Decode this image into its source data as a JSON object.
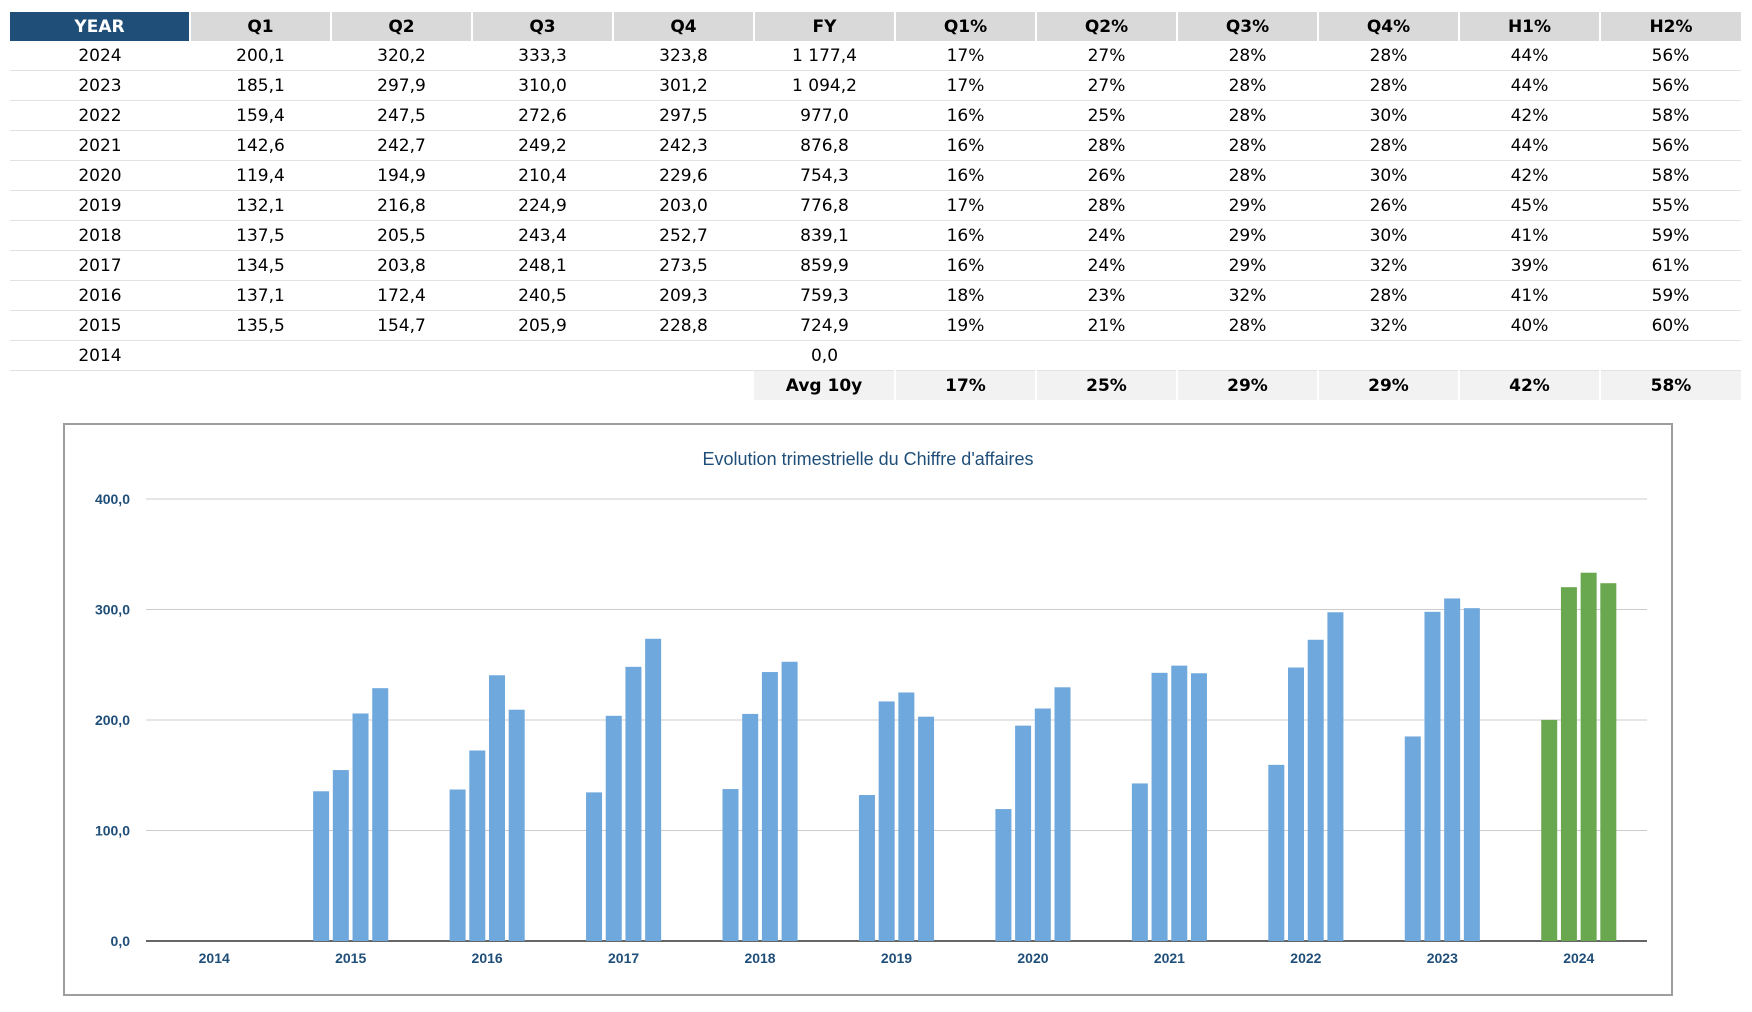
{
  "table": {
    "headers": [
      "YEAR",
      "Q1",
      "Q2",
      "Q3",
      "Q4",
      "FY",
      "Q1%",
      "Q2%",
      "Q3%",
      "Q4%",
      "H1%",
      "H2%"
    ],
    "rows": [
      [
        "2024",
        "200,1",
        "320,2",
        "333,3",
        "323,8",
        "1 177,4",
        "17%",
        "27%",
        "28%",
        "28%",
        "44%",
        "56%"
      ],
      [
        "2023",
        "185,1",
        "297,9",
        "310,0",
        "301,2",
        "1 094,2",
        "17%",
        "27%",
        "28%",
        "28%",
        "44%",
        "56%"
      ],
      [
        "2022",
        "159,4",
        "247,5",
        "272,6",
        "297,5",
        "977,0",
        "16%",
        "25%",
        "28%",
        "30%",
        "42%",
        "58%"
      ],
      [
        "2021",
        "142,6",
        "242,7",
        "249,2",
        "242,3",
        "876,8",
        "16%",
        "28%",
        "28%",
        "28%",
        "44%",
        "56%"
      ],
      [
        "2020",
        "119,4",
        "194,9",
        "210,4",
        "229,6",
        "754,3",
        "16%",
        "26%",
        "28%",
        "30%",
        "42%",
        "58%"
      ],
      [
        "2019",
        "132,1",
        "216,8",
        "224,9",
        "203,0",
        "776,8",
        "17%",
        "28%",
        "29%",
        "26%",
        "45%",
        "55%"
      ],
      [
        "2018",
        "137,5",
        "205,5",
        "243,4",
        "252,7",
        "839,1",
        "16%",
        "24%",
        "29%",
        "30%",
        "41%",
        "59%"
      ],
      [
        "2017",
        "134,5",
        "203,8",
        "248,1",
        "273,5",
        "859,9",
        "16%",
        "24%",
        "29%",
        "32%",
        "39%",
        "61%"
      ],
      [
        "2016",
        "137,1",
        "172,4",
        "240,5",
        "209,3",
        "759,3",
        "18%",
        "23%",
        "32%",
        "28%",
        "41%",
        "59%"
      ],
      [
        "2015",
        "135,5",
        "154,7",
        "205,9",
        "228,8",
        "724,9",
        "19%",
        "21%",
        "28%",
        "32%",
        "40%",
        "60%"
      ],
      [
        "2014",
        "",
        "",
        "",
        "",
        "0,0",
        "",
        "",
        "",
        "",
        "",
        ""
      ]
    ],
    "avg": {
      "label": "Avg 10y",
      "values": [
        "17%",
        "25%",
        "29%",
        "29%",
        "42%",
        "58%"
      ]
    }
  },
  "colors": {
    "header_year_bg": "#1f4e79",
    "header_bg": "#d9d9d9",
    "bar_default": "#6fa8dc",
    "bar_highlight": "#6aa84f",
    "axis_text": "#1f4e79"
  },
  "chart_data": {
    "type": "bar",
    "title": "Evolution trimestrielle du Chiffre d'affaires",
    "xlabel": "",
    "ylabel": "",
    "categories": [
      "2014",
      "2015",
      "2016",
      "2017",
      "2018",
      "2019",
      "2020",
      "2021",
      "2022",
      "2023",
      "2024"
    ],
    "series": [
      {
        "values": [
          null,
          135.5,
          137.1,
          134.5,
          137.5,
          132.1,
          119.4,
          142.6,
          159.4,
          185.1,
          200.1
        ]
      },
      {
        "values": [
          null,
          154.7,
          172.4,
          203.8,
          205.5,
          216.8,
          194.9,
          242.7,
          247.5,
          297.9,
          320.2
        ]
      },
      {
        "values": [
          null,
          205.9,
          240.5,
          248.1,
          243.4,
          224.9,
          210.4,
          249.2,
          272.6,
          310.0,
          333.3
        ]
      },
      {
        "values": [
          null,
          228.8,
          209.3,
          273.5,
          252.7,
          203.0,
          229.6,
          242.3,
          297.5,
          301.2,
          323.8
        ]
      }
    ],
    "highlight_category": "2024",
    "ylim": [
      0,
      400
    ],
    "yticks": [
      0,
      100,
      200,
      300,
      400
    ],
    "ytick_labels": [
      "0,0",
      "100,0",
      "200,0",
      "300,0",
      "400,0"
    ],
    "grid": true,
    "legend": "none"
  }
}
